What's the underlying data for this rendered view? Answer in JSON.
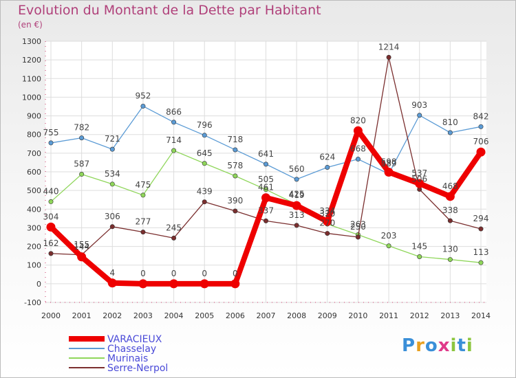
{
  "chart_data": {
    "type": "line",
    "title": "Evolution du Montant de la Dette par Habitant",
    "subtitle": "(en €)",
    "xlabel": "",
    "ylabel": "",
    "ylim": [
      -100,
      1300
    ],
    "yticks": [
      "-100",
      "0",
      "100",
      "200",
      "300",
      "400",
      "500",
      "600",
      "700",
      "800",
      "900",
      "1000",
      "1100",
      "1200",
      "1300"
    ],
    "x": [
      "2000",
      "2001",
      "2002",
      "2003",
      "2004",
      "2005",
      "2006",
      "2007",
      "2008",
      "2009",
      "2010",
      "2011",
      "2012",
      "2013",
      "2014"
    ],
    "grid": true,
    "legend_position": "bottom-left",
    "series": [
      {
        "name": "VARACIEUX",
        "color": "#ee0000",
        "values": [
          304,
          144,
          4,
          0,
          0,
          0,
          0,
          461,
          419,
          334,
          820,
          598,
          537,
          468,
          706
        ]
      },
      {
        "name": "Chasselay",
        "color": "#5b9bd5",
        "values": [
          755,
          782,
          721,
          952,
          866,
          796,
          718,
          641,
          560,
          624,
          668,
          589,
          903,
          810,
          842
        ]
      },
      {
        "name": "Murinais",
        "color": "#8fd65a",
        "values": [
          440,
          587,
          534,
          475,
          714,
          645,
          578,
          505,
          425,
          320,
          263,
          203,
          145,
          130,
          113
        ]
      },
      {
        "name": "Serre-Nerpol",
        "color": "#7a2e2e",
        "values": [
          162,
          155,
          306,
          277,
          245,
          439,
          390,
          337,
          313,
          270,
          250,
          1214,
          506,
          338,
          294
        ]
      }
    ]
  },
  "brand": {
    "letters": [
      "P",
      "r",
      "o",
      "x",
      "i",
      "t",
      "i"
    ],
    "colors": [
      "#3a8fd8",
      "#e8a020",
      "#3a8fd8",
      "#e03a8a",
      "#8cc63f",
      "#3a8fd8",
      "#8cc63f"
    ]
  }
}
